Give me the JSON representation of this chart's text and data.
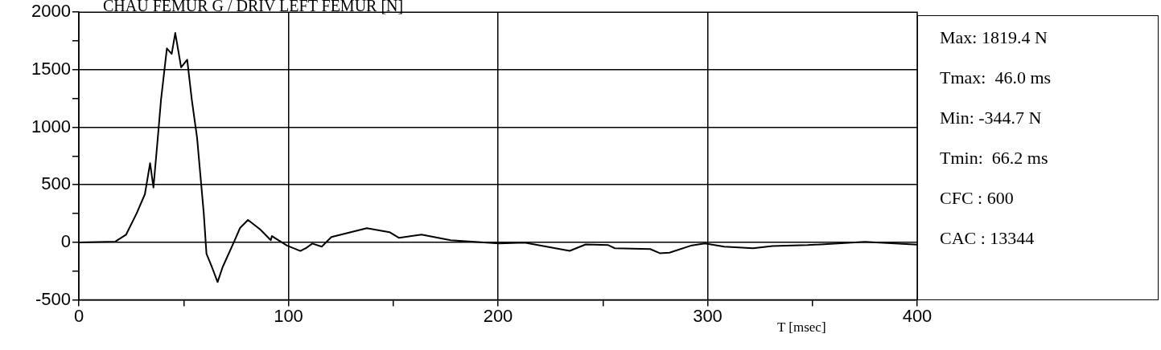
{
  "chart_data": {
    "type": "line",
    "title": "CHAU FEMUR G / DRIV LEFT FEMUR [N]",
    "xlabel": "T [msec]",
    "x": [
      0,
      17.4,
      22.5,
      27.6,
      31.5,
      34,
      35.6,
      37.9,
      39.2,
      42,
      44.3,
      46,
      48.8,
      51.7,
      53.9,
      56.4,
      59.6,
      60.9,
      63.5,
      66.2,
      68.6,
      74.4,
      76.9,
      80.7,
      86.5,
      91.6,
      92.1,
      99.3,
      105.7,
      108.3,
      111.4,
      115.9,
      120.5,
      137.4,
      148.2,
      152.8,
      163.5,
      177.4,
      200.4,
      212.7,
      234.2,
      241.8,
      252.6,
      255.7,
      272.6,
      277.2,
      281.8,
      292.5,
      298.7,
      307.9,
      321.7,
      330.9,
      347.8,
      375,
      400
    ],
    "series": [
      {
        "color": "#000000",
        "values": [
          0,
          7,
          66,
          253,
          418,
          688,
          477,
          957,
          1239,
          1685,
          1638,
          1819.4,
          1521,
          1587,
          1239,
          911,
          253,
          -99,
          -215,
          -344.7,
          -215,
          19,
          125,
          195,
          113,
          19,
          55,
          -28,
          -75,
          -51,
          -10,
          -37,
          47,
          123,
          89,
          39,
          67,
          19,
          -9,
          -3,
          -74,
          -18,
          -24,
          -51,
          -58,
          -94,
          -89,
          -26,
          -9,
          -37,
          -51,
          -32,
          -24,
          5,
          -20
        ]
      }
    ],
    "xlim": [
      0,
      400
    ],
    "xticks": [
      0,
      {
        "value": 50,
        "label": null
      },
      100,
      {
        "value": 150,
        "label": null
      },
      200,
      {
        "value": 250,
        "label": null
      },
      300,
      {
        "value": 350,
        "label": null
      },
      400
    ],
    "ylim": [
      -500,
      2000
    ],
    "yticks": [
      -500,
      {
        "value": -250,
        "label": null
      },
      0,
      {
        "value": 250,
        "label": null
      },
      500,
      {
        "value": 750,
        "label": null
      },
      1000,
      {
        "value": 1250,
        "label": null
      },
      1500,
      {
        "value": 1750,
        "label": null
      },
      2000
    ],
    "grid": true,
    "legend": false,
    "marker": "none",
    "line_style": "solid",
    "annotations": [
      "Max: 1819.4 N",
      "Tmax:  46.0 ms",
      "Min: -344.7 N",
      "Tmin:  66.2 ms",
      "CFC : 600",
      "CAC : 13344"
    ]
  }
}
